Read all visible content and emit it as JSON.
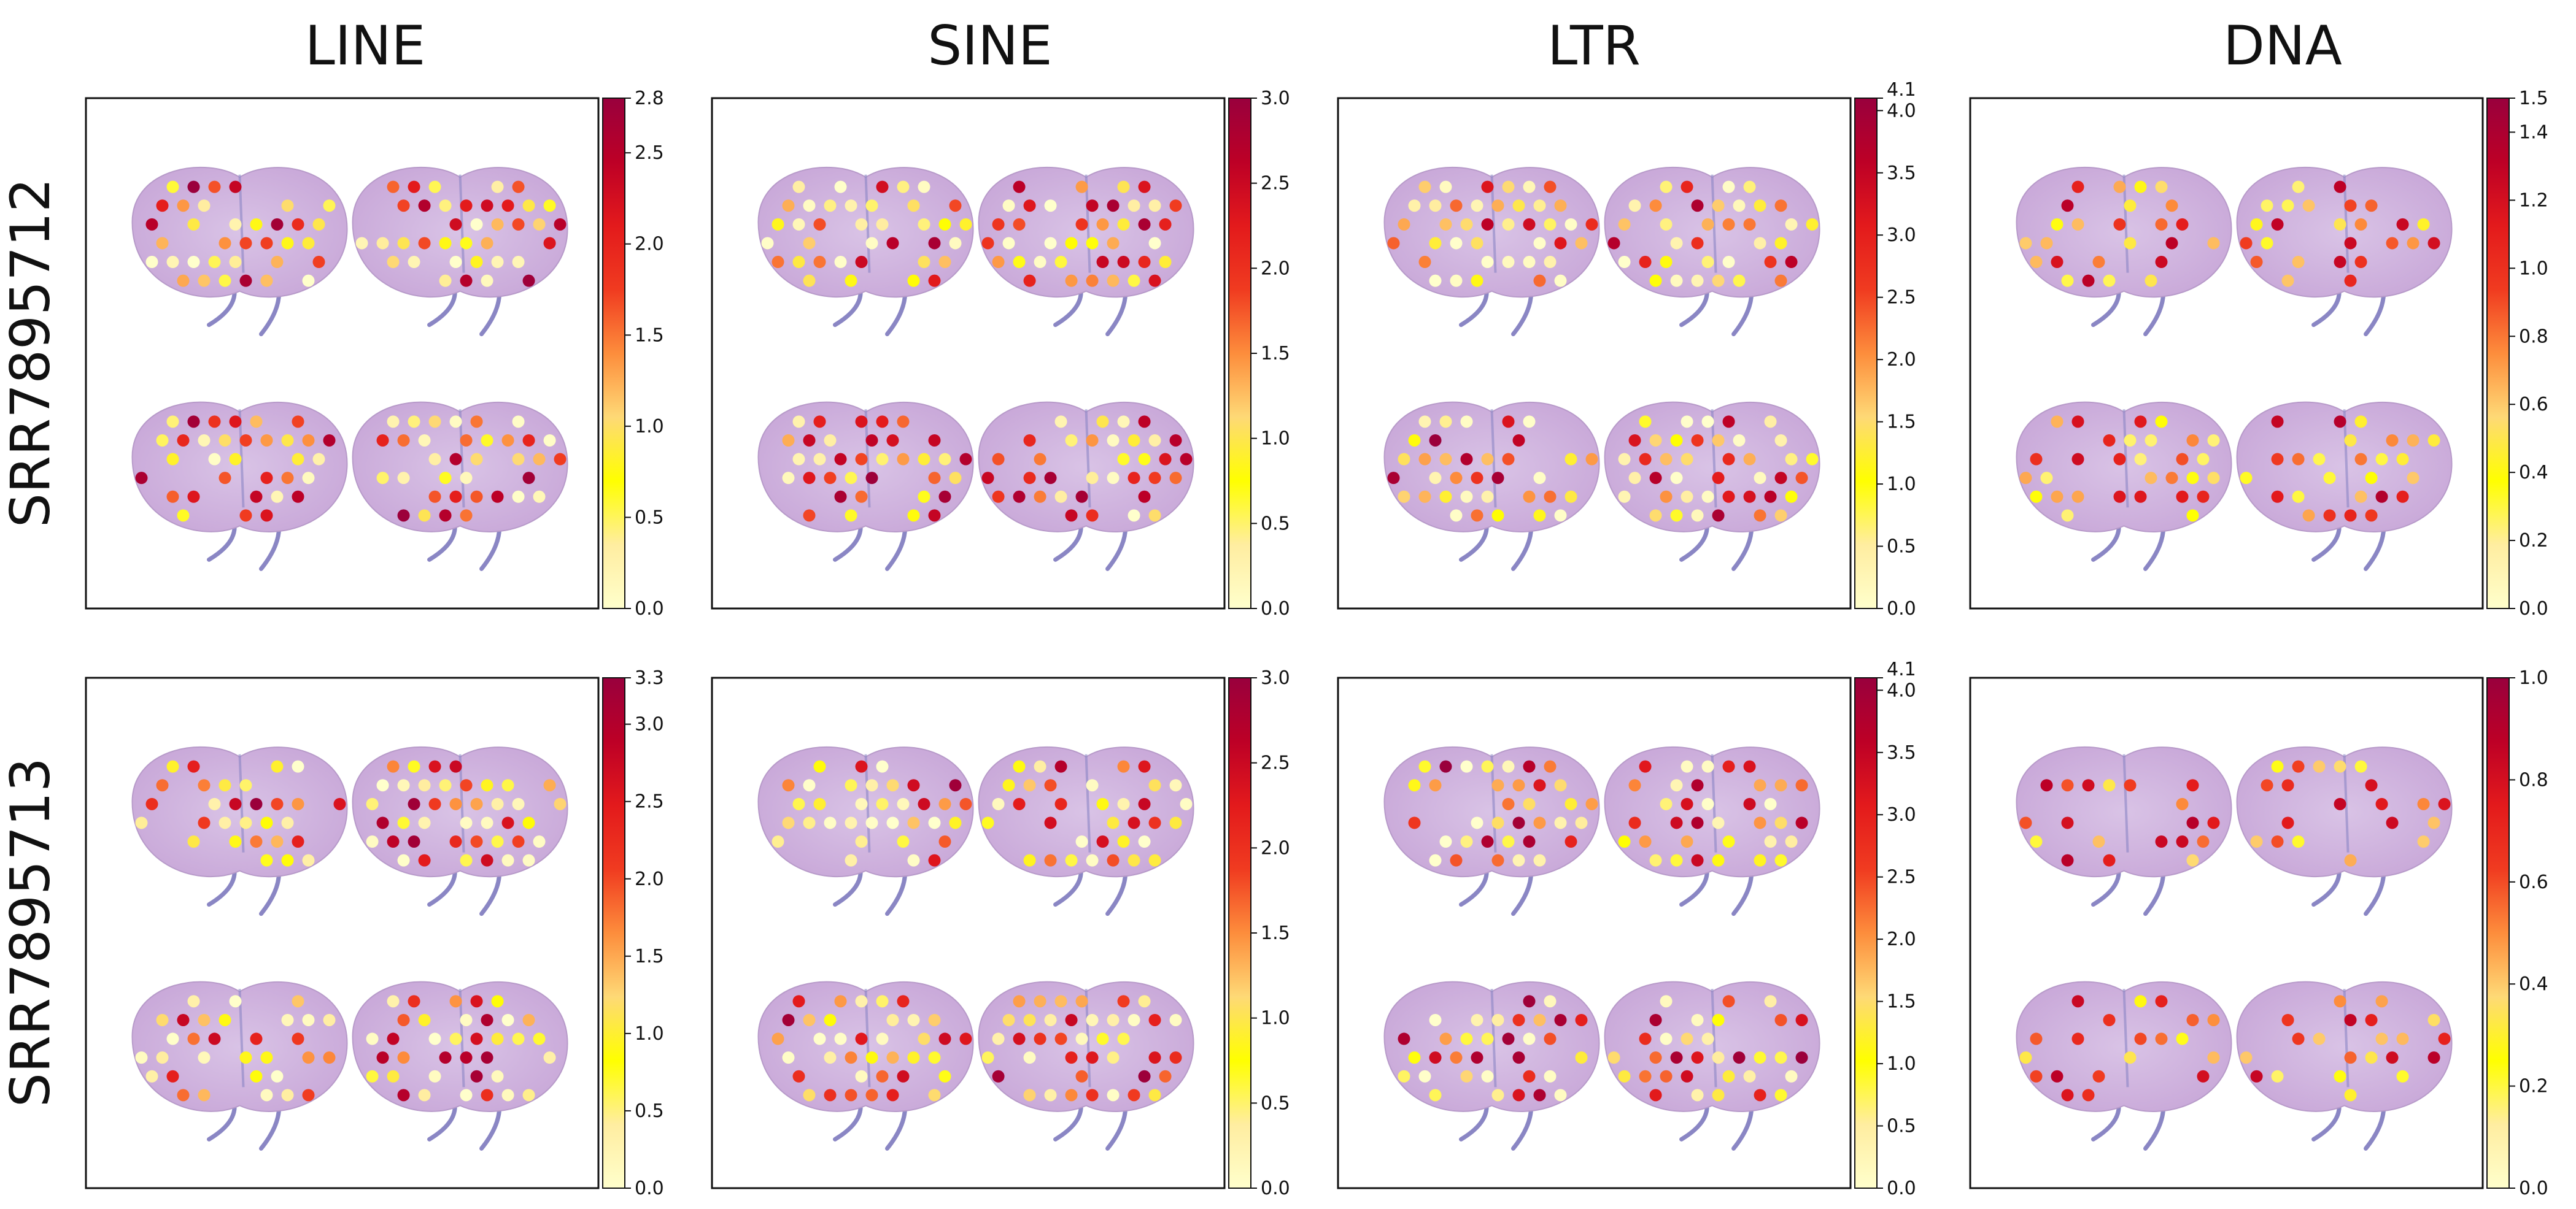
{
  "figure": {
    "columns": [
      "LINE",
      "SINE",
      "LTR",
      "DNA"
    ],
    "rows": [
      "SRR7895712",
      "SRR7895713"
    ]
  },
  "colors": {
    "tissue": "#c8a7d8",
    "tissue_light": "#d9c3e6",
    "tissue_stroke": "#b79ac9",
    "fiber": "#8a86c4",
    "colormap": [
      "#ffffcc",
      "#ffeda0",
      "#ffff00",
      "#fed976",
      "#fd8d3c",
      "#f03b20",
      "#e31a1c",
      "#bd0026",
      "#99003d"
    ]
  },
  "chart_data": [
    {
      "type": "heatmap",
      "title": "LINE",
      "row": "SRR7895712",
      "vmin": 0,
      "vmax": 2.8,
      "ticks": [
        "0.0",
        "0.5",
        "1.0",
        "1.5",
        "2.0",
        "2.5",
        "2.8"
      ],
      "spot_density": 1.0,
      "intensity": 0.55
    },
    {
      "type": "heatmap",
      "title": "SINE",
      "row": "SRR7895712",
      "vmin": 0,
      "vmax": 3.0,
      "ticks": [
        "0.0",
        "0.5",
        "1.0",
        "1.5",
        "2.0",
        "2.5",
        "3.0"
      ],
      "spot_density": 1.0,
      "intensity": 0.5
    },
    {
      "type": "heatmap",
      "title": "LTR",
      "row": "SRR7895712",
      "vmin": 0,
      "vmax": 4.1,
      "ticks": [
        "0.0",
        "0.5",
        "1.0",
        "1.5",
        "2.0",
        "2.5",
        "3.0",
        "3.5",
        "4.0",
        "4.1"
      ],
      "spot_density": 1.0,
      "intensity": 0.45
    },
    {
      "type": "heatmap",
      "title": "DNA",
      "row": "SRR7895712",
      "vmin": 0,
      "vmax": 1.5,
      "ticks": [
        "0.0",
        "0.2",
        "0.4",
        "0.6",
        "0.8",
        "1.0",
        "1.2",
        "1.4",
        "1.5"
      ],
      "spot_density": 0.06,
      "intensity": 0.6
    },
    {
      "type": "heatmap",
      "title": "LINE",
      "row": "SRR7895713",
      "vmin": 0,
      "vmax": 3.3,
      "ticks": [
        "0.0",
        "0.5",
        "1.0",
        "1.5",
        "2.0",
        "2.5",
        "3.0",
        "3.3"
      ],
      "spot_density": 1.0,
      "intensity": 0.4
    },
    {
      "type": "heatmap",
      "title": "SINE",
      "row": "SRR7895713",
      "vmin": 0,
      "vmax": 3.0,
      "ticks": [
        "0.0",
        "0.5",
        "1.0",
        "1.5",
        "2.0",
        "2.5",
        "3.0"
      ],
      "spot_density": 1.0,
      "intensity": 0.4
    },
    {
      "type": "heatmap",
      "title": "LTR",
      "row": "SRR7895713",
      "vmin": 0,
      "vmax": 4.1,
      "ticks": [
        "0.0",
        "0.5",
        "1.0",
        "1.5",
        "2.0",
        "2.5",
        "3.0",
        "3.5",
        "4.0",
        "4.1"
      ],
      "spot_density": 1.0,
      "intensity": 0.4
    },
    {
      "type": "heatmap",
      "title": "DNA",
      "row": "SRR7895713",
      "vmin": 0,
      "vmax": 1.0,
      "ticks": [
        "0.0",
        "0.2",
        "0.4",
        "0.6",
        "0.8",
        "1.0"
      ],
      "spot_density": 0.05,
      "intensity": 0.7
    }
  ]
}
